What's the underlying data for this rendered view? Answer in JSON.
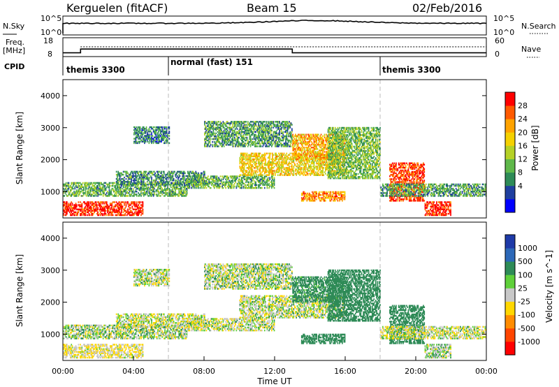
{
  "header": {
    "station": "Kerguelen (fitACF)",
    "beam": "Beam 15",
    "date": "02/Feb/2016"
  },
  "nsky_panel": {
    "left_label": "N.Sky",
    "right_label": "N.Search",
    "tick_top": "10^5",
    "tick_bottom": "10^0",
    "right_tick_top": "10^5",
    "right_tick_bottom": "10^0"
  },
  "freq_panel": {
    "left_label_line1": "Freq.",
    "left_label_line2": "[MHz]",
    "tick_top": "18",
    "tick_bottom": "8",
    "right_label": "Nave",
    "right_tick_top": "60",
    "right_tick_bottom": "0"
  },
  "cpid_panel": {
    "label": "CPID",
    "segments": [
      {
        "text": "themis 3300"
      },
      {
        "text": "normal (fast) 151"
      },
      {
        "text": "themis 3300"
      }
    ]
  },
  "time_axis": {
    "label": "Time UT",
    "ticks": [
      "00:00",
      "04:00",
      "08:00",
      "12:00",
      "16:00",
      "20:00",
      "00:00"
    ]
  },
  "range_ticks": [
    "4000",
    "3000",
    "2000",
    "1000"
  ],
  "power_panel": {
    "ylabel": "Slant Range [km]",
    "colorbar_label": "Power [dB]",
    "colorbar_ticks": [
      "28",
      "24",
      "20",
      "16",
      "12",
      "8",
      "4"
    ],
    "colors": [
      "#0000ff",
      "#1f3f9f",
      "#2e8b57",
      "#5fb84a",
      "#b5d126",
      "#f5d100",
      "#ffa300",
      "#ff5a00",
      "#ff0000"
    ]
  },
  "velocity_panel": {
    "ylabel": "Slant Range [km]",
    "colorbar_label": "Velocity [m s^-1]",
    "colorbar_ticks": [
      "1000",
      "500",
      "100",
      "25",
      "-25",
      "-100",
      "-500",
      "-1000"
    ],
    "colors": [
      "#1e3aa8",
      "#2c68b8",
      "#2e8b57",
      "#5fd03a",
      "#c8c8c8",
      "#ffd700",
      "#ff8c00",
      "#ff4500",
      "#ff0000"
    ]
  },
  "chart_data": {
    "type": "heatmap",
    "xlabel": "Time UT",
    "ylabel": "Slant Range [km]",
    "x_range_hours": [
      0,
      24
    ],
    "y_range_km": [
      180,
      4500
    ],
    "cpid_switch_hours": [
      6,
      18
    ],
    "frequency_mhz": [
      {
        "from": 0,
        "to": 1,
        "value": 10
      },
      {
        "from": 1,
        "to": 13,
        "value": 12
      },
      {
        "from": 13,
        "to": 24,
        "value": 10
      }
    ],
    "echo_regions": [
      {
        "t0": 0,
        "t1": 4.5,
        "r0": 250,
        "r1": 700,
        "power_db": 27,
        "velocity": -30
      },
      {
        "t0": 0,
        "t1": 7,
        "r0": 850,
        "r1": 1300,
        "power_db": 11,
        "velocity": 20
      },
      {
        "t0": 3,
        "t1": 8,
        "r0": 1200,
        "r1": 1650,
        "power_db": 9,
        "velocity": 0
      },
      {
        "t0": 4,
        "t1": 6,
        "r0": 2500,
        "r1": 3000,
        "power_db": 8,
        "velocity": 10
      },
      {
        "t0": 7,
        "t1": 12,
        "r0": 1100,
        "r1": 1500,
        "power_db": 11,
        "velocity": 5
      },
      {
        "t0": 8,
        "t1": 13,
        "r0": 2400,
        "r1": 3200,
        "power_db": 10,
        "velocity": 15
      },
      {
        "t0": 10,
        "t1": 16,
        "r0": 1500,
        "r1": 2200,
        "power_db": 18,
        "velocity": 10
      },
      {
        "t0": 13,
        "t1": 16,
        "r0": 2000,
        "r1": 2800,
        "power_db": 20,
        "velocity": 120
      },
      {
        "t0": 13.5,
        "t1": 16,
        "r0": 700,
        "r1": 1000,
        "power_db": 22,
        "velocity": 150
      },
      {
        "t0": 15,
        "t1": 18,
        "r0": 1400,
        "r1": 3000,
        "power_db": 12,
        "velocity": 150
      },
      {
        "t0": 18.5,
        "t1": 20.5,
        "r0": 700,
        "r1": 1900,
        "power_db": 26,
        "velocity": 130
      },
      {
        "t0": 20.5,
        "t1": 22,
        "r0": 250,
        "r1": 700,
        "power_db": 27,
        "velocity": 30
      },
      {
        "t0": 18,
        "t1": 24,
        "r0": 850,
        "r1": 1250,
        "power_db": 10,
        "velocity": 0
      }
    ]
  }
}
